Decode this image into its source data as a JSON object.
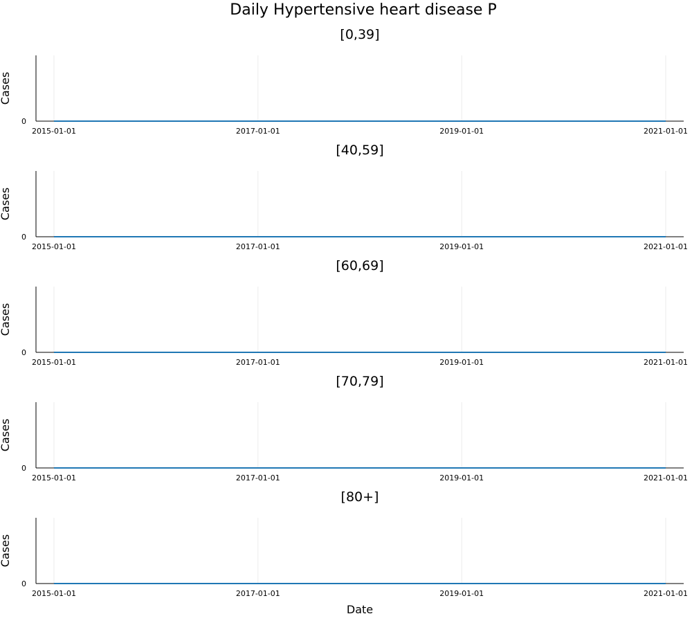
{
  "chart_data": {
    "type": "line",
    "title": "Daily Hypertensive heart disease P",
    "xlabel": "Date",
    "x_ticks": [
      "2015-01-01",
      "2017-01-01",
      "2019-01-01",
      "2021-01-01"
    ],
    "xlim": [
      "2015-01-01",
      "2021-01-01"
    ],
    "y_ticks": [
      0
    ],
    "grid": true,
    "line_color": "#1f77b4",
    "panels": [
      {
        "title": "[0,39]",
        "ylabel": "Cases",
        "x": [
          "2015-01-01",
          "2021-01-01"
        ],
        "y": [
          0,
          0
        ]
      },
      {
        "title": "[40,59]",
        "ylabel": "Cases",
        "x": [
          "2015-01-01",
          "2021-01-01"
        ],
        "y": [
          0,
          0
        ]
      },
      {
        "title": "[60,69]",
        "ylabel": "Cases",
        "x": [
          "2015-01-01",
          "2021-01-01"
        ],
        "y": [
          0,
          0
        ]
      },
      {
        "title": "[70,79]",
        "ylabel": "Cases",
        "x": [
          "2015-01-01",
          "2021-01-01"
        ],
        "y": [
          0,
          0
        ]
      },
      {
        "title": "[80+]",
        "ylabel": "Cases",
        "x": [
          "2015-01-01",
          "2021-01-01"
        ],
        "y": [
          0,
          0
        ]
      }
    ]
  }
}
